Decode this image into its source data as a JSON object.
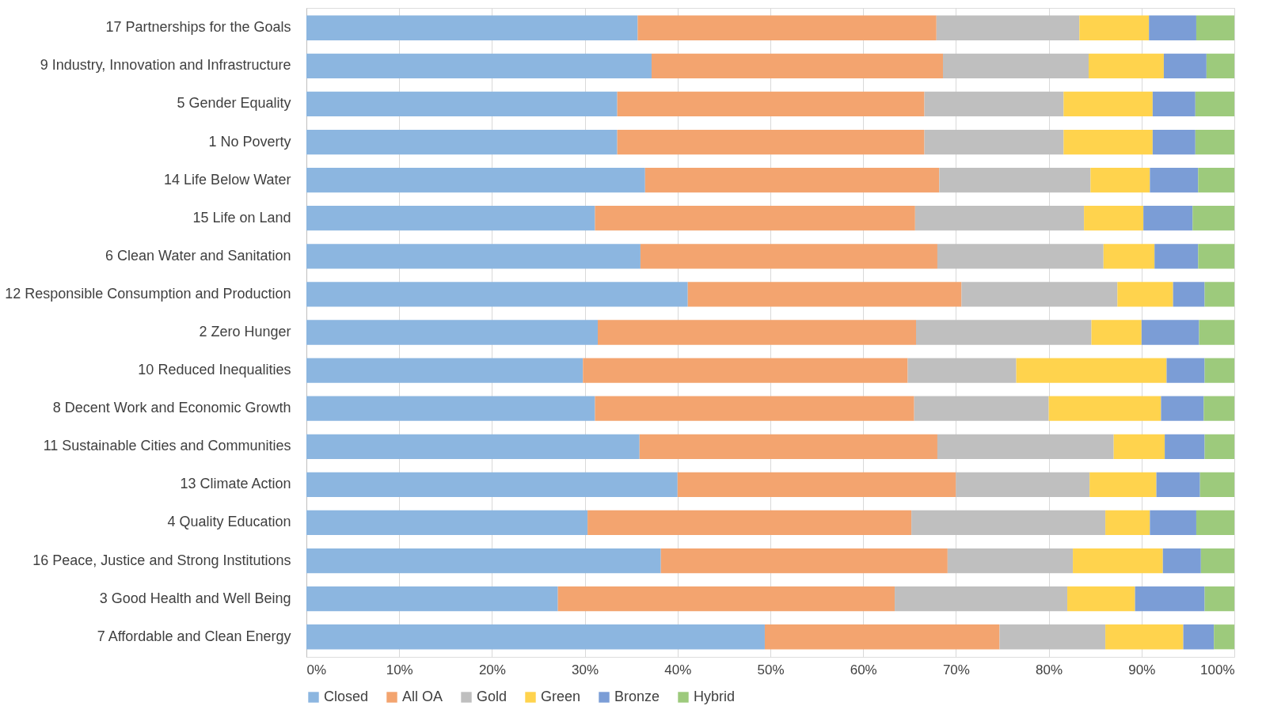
{
  "chart_data": {
    "type": "bar",
    "orientation": "horizontal",
    "stacked": true,
    "categories": [
      "17 Partnerships for the Goals",
      "9 Industry, Innovation and Infrastructure",
      "5 Gender Equality",
      "1 No Poverty",
      "14 Life Below Water",
      "15 Life on Land",
      "6 Clean Water and Sanitation",
      "12 Responsible Consumption and Production",
      "2 Zero Hunger",
      "10 Reduced Inequalities",
      "8 Decent Work and Economic Growth",
      "11 Sustainable Cities and Communities",
      "13 Climate Action",
      "4 Quality Education",
      "16 Peace, Justice and Strong Institutions",
      "3 Good Health and Well Being",
      "7 Affordable and Clean Energy"
    ],
    "series": [
      {
        "name": "Closed",
        "color": "#8cb6e0",
        "values": [
          35.7,
          37.2,
          33.5,
          33.5,
          36.5,
          31.1,
          36.0,
          41.1,
          31.4,
          29.8,
          31.1,
          35.9,
          40.0,
          30.3,
          38.2,
          27.1,
          49.4
        ]
      },
      {
        "name": "All OA",
        "color": "#f3a46f",
        "values": [
          32.2,
          31.4,
          33.1,
          33.1,
          31.7,
          34.5,
          32.0,
          29.5,
          34.3,
          35.0,
          34.4,
          32.1,
          30.0,
          34.9,
          30.9,
          36.3,
          25.3
        ]
      },
      {
        "name": "Gold",
        "color": "#bfbfbf",
        "values": [
          15.4,
          15.7,
          15.0,
          15.0,
          16.3,
          18.2,
          17.9,
          16.8,
          18.9,
          11.7,
          14.5,
          19.0,
          14.4,
          20.9,
          13.5,
          18.6,
          11.4
        ]
      },
      {
        "name": "Green",
        "color": "#ffd34d",
        "values": [
          7.5,
          8.1,
          9.6,
          9.6,
          6.4,
          6.4,
          5.5,
          6.0,
          5.4,
          16.2,
          12.1,
          5.5,
          7.2,
          4.8,
          9.7,
          7.3,
          8.4
        ]
      },
      {
        "name": "Bronze",
        "color": "#7b9dd6",
        "values": [
          5.1,
          4.6,
          4.6,
          4.6,
          5.2,
          5.3,
          4.7,
          3.4,
          6.2,
          4.1,
          4.6,
          4.3,
          4.7,
          5.0,
          4.1,
          7.5,
          3.3
        ]
      },
      {
        "name": "Hybrid",
        "color": "#9dca7c",
        "values": [
          4.1,
          3.0,
          4.2,
          4.2,
          3.9,
          4.5,
          3.9,
          3.2,
          3.8,
          3.2,
          3.3,
          3.2,
          3.7,
          4.1,
          3.6,
          3.2,
          2.2
        ]
      }
    ],
    "xlim": [
      0,
      100
    ],
    "xticks": [
      {
        "value": 0,
        "label": "0%"
      },
      {
        "value": 10,
        "label": "10%"
      },
      {
        "value": 20,
        "label": "20%"
      },
      {
        "value": 30,
        "label": "30%"
      },
      {
        "value": 40,
        "label": "40%"
      },
      {
        "value": 50,
        "label": "50%"
      },
      {
        "value": 60,
        "label": "60%"
      },
      {
        "value": 70,
        "label": "70%"
      },
      {
        "value": 80,
        "label": "80%"
      },
      {
        "value": 90,
        "label": "90%"
      },
      {
        "value": 100,
        "label": "100%"
      }
    ],
    "grid": "x",
    "legend": "bottom"
  }
}
